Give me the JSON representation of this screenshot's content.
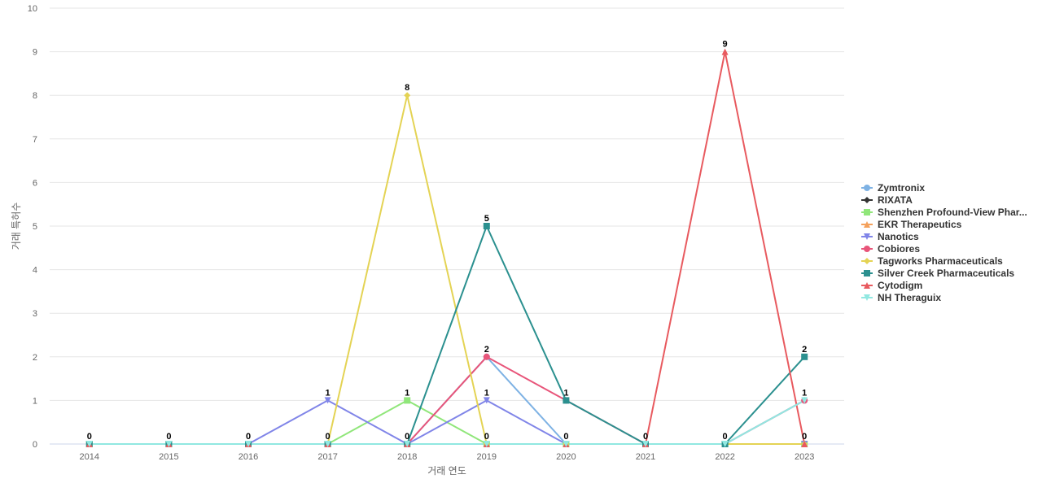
{
  "chart_data": {
    "type": "line",
    "title": "",
    "xlabel": "거래 연도",
    "ylabel": "거래 특허수",
    "x": [
      "2014",
      "2015",
      "2016",
      "2017",
      "2018",
      "2019",
      "2020",
      "2021",
      "2022",
      "2023"
    ],
    "ylim": [
      0,
      10
    ],
    "yticks": [
      0,
      1,
      2,
      3,
      4,
      5,
      6,
      7,
      8,
      9,
      10
    ],
    "grid": "horizontal",
    "legend_position": "right",
    "series": [
      {
        "name": "Zymtronix",
        "color": "#7eb2e4",
        "marker": "circle",
        "values": [
          0,
          0,
          0,
          0,
          0,
          2,
          0,
          0,
          0,
          1
        ]
      },
      {
        "name": "RIXATA",
        "color": "#333333",
        "marker": "diamond",
        "values": [
          0,
          0,
          0,
          0,
          0,
          0,
          0,
          0,
          0,
          0
        ]
      },
      {
        "name": "Shenzhen Profound-View Phar...",
        "color": "#90e67a",
        "marker": "square",
        "values": [
          0,
          0,
          0,
          0,
          1,
          0,
          0,
          0,
          0,
          0
        ]
      },
      {
        "name": "EKR Therapeutics",
        "color": "#f4a15c",
        "marker": "triangle",
        "values": [
          0,
          0,
          0,
          0,
          0,
          0,
          0,
          0,
          0,
          0
        ]
      },
      {
        "name": "Nanotics",
        "color": "#8085e8",
        "marker": "triangle-down",
        "values": [
          0,
          0,
          0,
          1,
          0,
          1,
          0,
          0,
          0,
          0
        ]
      },
      {
        "name": "Cobiores",
        "color": "#e8557a",
        "marker": "circle",
        "values": [
          0,
          0,
          0,
          0,
          0,
          2,
          1,
          0,
          0,
          1
        ]
      },
      {
        "name": "Tagworks Pharmaceuticals",
        "color": "#e4d354",
        "marker": "diamond",
        "values": [
          0,
          0,
          0,
          0,
          8,
          0,
          0,
          0,
          0,
          0
        ]
      },
      {
        "name": "Silver Creek Pharmaceuticals",
        "color": "#2b908f",
        "marker": "square",
        "values": [
          0,
          0,
          0,
          0,
          0,
          5,
          1,
          0,
          0,
          2
        ]
      },
      {
        "name": "Cytodigm",
        "color": "#e85a5f",
        "marker": "triangle",
        "values": [
          0,
          0,
          0,
          0,
          0,
          0,
          0,
          0,
          9,
          0
        ]
      },
      {
        "name": "NH Theraguix",
        "color": "#91e8e1",
        "marker": "triangle-down",
        "values": [
          0,
          0,
          0,
          0,
          0,
          0,
          0,
          0,
          0,
          1
        ]
      }
    ],
    "data_labels": [
      {
        "x": "2014",
        "value": 0
      },
      {
        "x": "2015",
        "value": 0
      },
      {
        "x": "2016",
        "value": 0
      },
      {
        "x": "2017",
        "value": 1
      },
      {
        "x": "2017",
        "value": 0
      },
      {
        "x": "2018",
        "value": 8
      },
      {
        "x": "2018",
        "value": 1
      },
      {
        "x": "2018",
        "value": 0
      },
      {
        "x": "2019",
        "value": 5
      },
      {
        "x": "2019",
        "value": 2
      },
      {
        "x": "2019",
        "value": 1
      },
      {
        "x": "2019",
        "value": 0
      },
      {
        "x": "2020",
        "value": 1
      },
      {
        "x": "2020",
        "value": 0
      },
      {
        "x": "2021",
        "value": 0
      },
      {
        "x": "2022",
        "value": 9
      },
      {
        "x": "2022",
        "value": 0
      },
      {
        "x": "2023",
        "value": 2
      },
      {
        "x": "2023",
        "value": 1
      },
      {
        "x": "2023",
        "value": 0
      }
    ]
  }
}
